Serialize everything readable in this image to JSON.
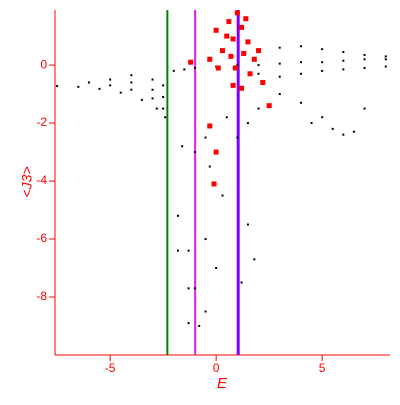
{
  "chart_data": {
    "type": "scatter",
    "xlabel": "E",
    "ylabel": "<J3>",
    "xlim": [
      -7.6,
      8.2
    ],
    "ylim": [
      -10,
      1.9
    ],
    "xticks": [
      -5,
      0,
      5
    ],
    "yticks": [
      0,
      -2,
      -4,
      -6,
      -8
    ],
    "axis_color": "#ff0000",
    "vlines": [
      {
        "x": -2.3,
        "color": "#008000"
      },
      {
        "x": -0.99,
        "color": "#e020e0"
      },
      {
        "x": 1.04,
        "color": "#8000ff"
      }
    ],
    "series": [
      {
        "color": "#000000",
        "size": 2,
        "x": [
          -7.5,
          -6.5,
          -5.5,
          -4.5,
          -3.5,
          -2.8,
          -2.4,
          -6,
          -5,
          -4,
          -3,
          -2.5,
          -5,
          -4,
          -3,
          -2.5,
          -4,
          -3,
          -2.5,
          -2,
          -1.5,
          -1,
          0,
          1,
          2,
          3,
          4,
          5,
          6,
          7,
          8,
          2,
          3,
          4,
          5,
          6,
          7,
          8,
          2,
          3,
          4,
          5,
          6,
          7,
          8,
          3,
          4,
          5,
          5.5,
          6,
          6.5,
          7,
          4.5,
          2,
          1.5,
          1,
          0.5,
          -1.6,
          -1,
          -0.5,
          -1.8,
          -1.8,
          -1.3,
          -1.3,
          -1,
          -1.3,
          -0.8,
          -0.5,
          0,
          1.5,
          1.8,
          1.2,
          -0.5,
          -0.3,
          0.3
        ],
        "y": [
          -0.72,
          -0.75,
          -0.82,
          -0.95,
          -1.2,
          -1.5,
          -1.8,
          -0.6,
          -0.7,
          -0.85,
          -1.15,
          -1.5,
          -0.5,
          -0.6,
          -0.85,
          -1.1,
          -0.35,
          -0.5,
          -0.7,
          -0.2,
          -0.15,
          -0.1,
          -0.05,
          0,
          0,
          0.05,
          0.1,
          0.1,
          0.15,
          0.2,
          0.2,
          0.5,
          0.6,
          0.65,
          0.55,
          0.45,
          0.35,
          0.3,
          -0.3,
          -0.4,
          -0.3,
          -0.2,
          -0.15,
          -0.1,
          -0.05,
          -1,
          -1.3,
          -1.8,
          -2.2,
          -2.4,
          -2.3,
          -1.5,
          -2,
          -1.5,
          -2,
          -2.5,
          -1.8,
          -2.8,
          -3,
          -2.5,
          -5.2,
          -6.4,
          -6.4,
          -7.7,
          -7.7,
          -8.9,
          -9,
          -8.5,
          -7,
          -5.5,
          -6.7,
          -7.5,
          -6,
          -3.5,
          -4.5
        ]
      },
      {
        "color": "#ff0000",
        "size": 5,
        "x": [
          0,
          0.5,
          0.8,
          1,
          1.2,
          1.5,
          0.3,
          0.7,
          1.3,
          1.8,
          -0.3,
          0.1,
          0.9,
          1.6,
          2.2,
          1.2,
          2.5,
          -0.3,
          0,
          -0.1,
          0.8,
          2.0,
          0.6,
          1.4,
          -1.2
        ],
        "y": [
          1.2,
          1.0,
          0.9,
          1.8,
          1.3,
          0.8,
          0.5,
          0.3,
          0.4,
          0.2,
          0.2,
          -0.1,
          -0.1,
          -0.3,
          -0.6,
          -0.8,
          -1.4,
          -2.1,
          -3.0,
          -4.1,
          -0.7,
          0.5,
          1.5,
          1.6,
          0.1
        ]
      }
    ]
  }
}
